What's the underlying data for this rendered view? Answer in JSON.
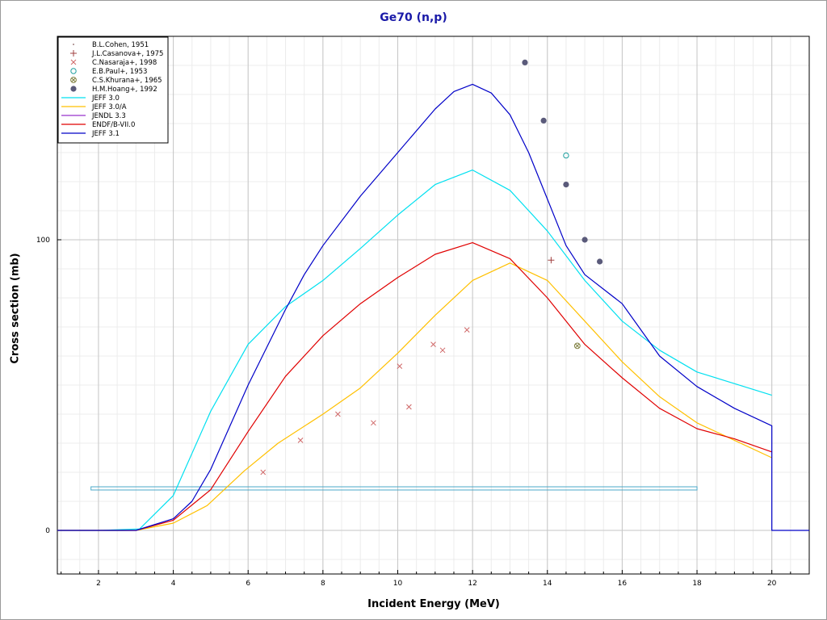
{
  "chart_data": {
    "type": "line",
    "title": "Ge70 (n,p)",
    "xlabel": "Incident Energy (MeV)",
    "ylabel": "Cross section (mb)",
    "xlim": [
      0.9,
      21.0
    ],
    "ylim": [
      -15,
      170
    ],
    "x_ticks": [
      2,
      4,
      6,
      8,
      10,
      12,
      14,
      16,
      18,
      20
    ],
    "y_ticks": [
      0,
      100
    ],
    "grid": true,
    "legend_position": "top-left",
    "series": [
      {
        "name": "JEFF 3.0",
        "kind": "line",
        "color": "#00e0f0",
        "points": [
          [
            0.9,
            0
          ],
          [
            2,
            0
          ],
          [
            3.1,
            0.5
          ],
          [
            4,
            12
          ],
          [
            5,
            41
          ],
          [
            6,
            64
          ],
          [
            7,
            77
          ],
          [
            8,
            86
          ],
          [
            9,
            97
          ],
          [
            10,
            108.5
          ],
          [
            11,
            119
          ],
          [
            12,
            124
          ],
          [
            13,
            117
          ],
          [
            14,
            103
          ],
          [
            15,
            86
          ],
          [
            16,
            72
          ],
          [
            17,
            62
          ],
          [
            18,
            54.5
          ],
          [
            19,
            50.5
          ],
          [
            20,
            46.5
          ]
        ]
      },
      {
        "name": "JEFF 3.0/A",
        "kind": "line",
        "color": "#ffc000",
        "points": [
          [
            0.9,
            0
          ],
          [
            2,
            0
          ],
          [
            3,
            0
          ],
          [
            4,
            2.5
          ],
          [
            4.9,
            8.5
          ],
          [
            5.9,
            20.5
          ],
          [
            6.8,
            30
          ],
          [
            8,
            40
          ],
          [
            9,
            49
          ],
          [
            10,
            61
          ],
          [
            11,
            74
          ],
          [
            12,
            86
          ],
          [
            13,
            92
          ],
          [
            14,
            86
          ],
          [
            15,
            72
          ],
          [
            16,
            58
          ],
          [
            17,
            46
          ],
          [
            18,
            37
          ],
          [
            19,
            31
          ],
          [
            20,
            25
          ]
        ]
      },
      {
        "name": "JENDL 3.3",
        "kind": "line",
        "color": "#9933cc",
        "points": []
      },
      {
        "name": "ENDF/B-VII.0",
        "kind": "line",
        "color": "#e00000",
        "points": [
          [
            0.9,
            0
          ],
          [
            2,
            0
          ],
          [
            3,
            0
          ],
          [
            4,
            3.5
          ],
          [
            5,
            14
          ],
          [
            6,
            34
          ],
          [
            7,
            53
          ],
          [
            8,
            67
          ],
          [
            9,
            78
          ],
          [
            10,
            87
          ],
          [
            11,
            95
          ],
          [
            12,
            99
          ],
          [
            13,
            93.5
          ],
          [
            14,
            80
          ],
          [
            15,
            64
          ],
          [
            16,
            52.5
          ],
          [
            17,
            42
          ],
          [
            18,
            35
          ],
          [
            19,
            31.5
          ],
          [
            20,
            27
          ]
        ]
      },
      {
        "name": "JEFF 3.1",
        "kind": "line",
        "color": "#0000c8",
        "points": [
          [
            0.9,
            0
          ],
          [
            2,
            0
          ],
          [
            3,
            0
          ],
          [
            4,
            4
          ],
          [
            4.5,
            10
          ],
          [
            5,
            21
          ],
          [
            6,
            50
          ],
          [
            7,
            76
          ],
          [
            7.5,
            88
          ],
          [
            8,
            98
          ],
          [
            9,
            115
          ],
          [
            10,
            130
          ],
          [
            11,
            145
          ],
          [
            11.5,
            151
          ],
          [
            12,
            153.5
          ],
          [
            12.5,
            150.5
          ],
          [
            13,
            143
          ],
          [
            13.5,
            130
          ],
          [
            14,
            114
          ],
          [
            14.5,
            98
          ],
          [
            15,
            88
          ],
          [
            16,
            78
          ],
          [
            17,
            60
          ],
          [
            18,
            49.5
          ],
          [
            19,
            42
          ],
          [
            20,
            36
          ],
          [
            20,
            0
          ],
          [
            21,
            0
          ]
        ]
      },
      {
        "name": "B.L.Cohen, 1951",
        "kind": "points",
        "marker": "dot",
        "color": "#a08080",
        "points": []
      },
      {
        "name": "J.L.Casanova+, 1975",
        "kind": "points",
        "marker": "plus",
        "color": "#a04040",
        "points": [
          [
            14.1,
            93
          ]
        ]
      },
      {
        "name": "C.Nasaraja+, 1998",
        "kind": "points",
        "marker": "x",
        "color": "#d06868",
        "points": [
          [
            6.4,
            20
          ],
          [
            7.4,
            31
          ],
          [
            8.4,
            40
          ],
          [
            9.35,
            37
          ],
          [
            10.05,
            56.5
          ],
          [
            10.3,
            42.5
          ],
          [
            10.95,
            64
          ],
          [
            11.2,
            62
          ],
          [
            11.85,
            69
          ]
        ]
      },
      {
        "name": "E.B.Paul+, 1953",
        "kind": "points",
        "marker": "circle",
        "color": "#20a0a0",
        "points": [
          [
            14.5,
            129
          ]
        ]
      },
      {
        "name": "C.S.Khurana+, 1965",
        "kind": "points",
        "marker": "crossed-circle",
        "color": "#808040",
        "points": [
          [
            14.8,
            63.5
          ]
        ]
      },
      {
        "name": "H.M.Hoang+, 1992",
        "kind": "points",
        "marker": "filled-circle",
        "color": "#5a5a7a",
        "points": [
          [
            13.4,
            161
          ],
          [
            13.9,
            141
          ],
          [
            14.5,
            119
          ],
          [
            15.0,
            100
          ],
          [
            15.4,
            92.5
          ]
        ]
      }
    ],
    "bands": [
      {
        "color": "#4aa8c8",
        "x": [
          1.8,
          18.0
        ],
        "y": [
          13.9,
          15.0
        ]
      }
    ]
  }
}
